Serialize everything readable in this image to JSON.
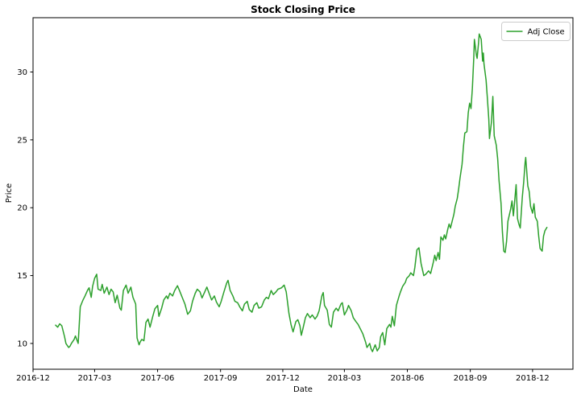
{
  "chart_data": {
    "type": "line",
    "title": "Stock Closing Price",
    "xlabel": "Date",
    "ylabel": "Price",
    "grid": false,
    "background_color": "#ffffff",
    "spine_color": "#000000",
    "legend_position": "upper right",
    "legend_border_color": "#cccccc",
    "ylim": [
      8.1,
      34.0
    ],
    "yticks": [
      10,
      15,
      20,
      25,
      30
    ],
    "xlim": [
      "2016-12-01",
      "2019-01-29"
    ],
    "xticks": [
      "2016-12",
      "2017-03",
      "2017-06",
      "2017-09",
      "2017-12",
      "2018-03",
      "2018-06",
      "2018-09",
      "2018-12"
    ],
    "series": [
      {
        "name": "Adj Close",
        "color": "#2ca02c",
        "points": [
          [
            "2017-01-03",
            11.35
          ],
          [
            "2017-01-06",
            11.2
          ],
          [
            "2017-01-09",
            11.45
          ],
          [
            "2017-01-12",
            11.3
          ],
          [
            "2017-01-16",
            10.5
          ],
          [
            "2017-01-18",
            10.0
          ],
          [
            "2017-01-22",
            9.7
          ],
          [
            "2017-01-24",
            9.8
          ],
          [
            "2017-01-26",
            10.0
          ],
          [
            "2017-01-30",
            10.3
          ],
          [
            "2017-02-01",
            10.55
          ],
          [
            "2017-02-05",
            10.0
          ],
          [
            "2017-02-08",
            12.7
          ],
          [
            "2017-02-12",
            13.2
          ],
          [
            "2017-02-15",
            13.5
          ],
          [
            "2017-02-19",
            13.95
          ],
          [
            "2017-02-21",
            14.1
          ],
          [
            "2017-02-24",
            13.4
          ],
          [
            "2017-02-26",
            14.2
          ],
          [
            "2017-03-01",
            14.8
          ],
          [
            "2017-03-04",
            15.1
          ],
          [
            "2017-03-06",
            14.0
          ],
          [
            "2017-03-10",
            13.9
          ],
          [
            "2017-03-12",
            14.35
          ],
          [
            "2017-03-15",
            13.7
          ],
          [
            "2017-03-19",
            14.15
          ],
          [
            "2017-03-22",
            13.6
          ],
          [
            "2017-03-25",
            14.0
          ],
          [
            "2017-03-28",
            13.8
          ],
          [
            "2017-03-31",
            13.0
          ],
          [
            "2017-04-03",
            13.55
          ],
          [
            "2017-04-07",
            12.6
          ],
          [
            "2017-04-09",
            12.45
          ],
          [
            "2017-04-12",
            13.9
          ],
          [
            "2017-04-16",
            14.3
          ],
          [
            "2017-04-19",
            13.7
          ],
          [
            "2017-04-23",
            14.15
          ],
          [
            "2017-04-26",
            13.4
          ],
          [
            "2017-04-30",
            12.9
          ],
          [
            "2017-05-02",
            10.4
          ],
          [
            "2017-05-05",
            9.9
          ],
          [
            "2017-05-07",
            10.15
          ],
          [
            "2017-05-09",
            10.3
          ],
          [
            "2017-05-12",
            10.2
          ],
          [
            "2017-05-15",
            11.55
          ],
          [
            "2017-05-18",
            11.8
          ],
          [
            "2017-05-21",
            11.2
          ],
          [
            "2017-05-25",
            12.0
          ],
          [
            "2017-05-28",
            12.55
          ],
          [
            "2017-06-01",
            12.8
          ],
          [
            "2017-06-03",
            12.0
          ],
          [
            "2017-06-07",
            12.6
          ],
          [
            "2017-06-10",
            13.2
          ],
          [
            "2017-06-14",
            13.5
          ],
          [
            "2017-06-16",
            13.3
          ],
          [
            "2017-06-19",
            13.7
          ],
          [
            "2017-06-23",
            13.5
          ],
          [
            "2017-06-26",
            13.9
          ],
          [
            "2017-06-30",
            14.25
          ],
          [
            "2017-07-03",
            13.9
          ],
          [
            "2017-07-07",
            13.4
          ],
          [
            "2017-07-11",
            12.9
          ],
          [
            "2017-07-15",
            12.15
          ],
          [
            "2017-07-19",
            12.4
          ],
          [
            "2017-07-22",
            13.1
          ],
          [
            "2017-07-26",
            13.7
          ],
          [
            "2017-07-29",
            14.0
          ],
          [
            "2017-08-02",
            13.8
          ],
          [
            "2017-08-05",
            13.35
          ],
          [
            "2017-08-09",
            13.8
          ],
          [
            "2017-08-12",
            14.15
          ],
          [
            "2017-08-16",
            13.6
          ],
          [
            "2017-08-19",
            13.2
          ],
          [
            "2017-08-23",
            13.5
          ],
          [
            "2017-08-26",
            13.05
          ],
          [
            "2017-08-30",
            12.7
          ],
          [
            "2017-09-02",
            13.1
          ],
          [
            "2017-09-06",
            13.8
          ],
          [
            "2017-09-10",
            14.45
          ],
          [
            "2017-09-12",
            14.65
          ],
          [
            "2017-09-15",
            13.9
          ],
          [
            "2017-09-19",
            13.5
          ],
          [
            "2017-09-22",
            13.1
          ],
          [
            "2017-09-26",
            13.0
          ],
          [
            "2017-09-29",
            12.7
          ],
          [
            "2017-10-03",
            12.4
          ],
          [
            "2017-10-06",
            12.9
          ],
          [
            "2017-10-10",
            13.1
          ],
          [
            "2017-10-13",
            12.5
          ],
          [
            "2017-10-17",
            12.3
          ],
          [
            "2017-10-20",
            12.8
          ],
          [
            "2017-10-24",
            13.0
          ],
          [
            "2017-10-27",
            12.6
          ],
          [
            "2017-10-31",
            12.7
          ],
          [
            "2017-11-04",
            13.2
          ],
          [
            "2017-11-07",
            13.4
          ],
          [
            "2017-11-10",
            13.3
          ],
          [
            "2017-11-14",
            13.9
          ],
          [
            "2017-11-17",
            13.6
          ],
          [
            "2017-11-21",
            13.8
          ],
          [
            "2017-11-24",
            14.0
          ],
          [
            "2017-11-29",
            14.1
          ],
          [
            "2017-12-03",
            14.3
          ],
          [
            "2017-12-06",
            13.8
          ],
          [
            "2017-12-10",
            12.2
          ],
          [
            "2017-12-13",
            11.4
          ],
          [
            "2017-12-16",
            10.85
          ],
          [
            "2017-12-20",
            11.6
          ],
          [
            "2017-12-23",
            11.75
          ],
          [
            "2017-12-26",
            11.3
          ],
          [
            "2017-12-28",
            10.6
          ],
          [
            "2017-12-30",
            11.0
          ],
          [
            "2018-01-03",
            11.9
          ],
          [
            "2018-01-06",
            12.2
          ],
          [
            "2018-01-10",
            11.9
          ],
          [
            "2018-01-13",
            12.1
          ],
          [
            "2018-01-17",
            11.8
          ],
          [
            "2018-01-20",
            12.0
          ],
          [
            "2018-01-23",
            12.4
          ],
          [
            "2018-01-27",
            13.5
          ],
          [
            "2018-01-29",
            13.75
          ],
          [
            "2018-01-31",
            12.8
          ],
          [
            "2018-02-04",
            12.45
          ],
          [
            "2018-02-07",
            11.4
          ],
          [
            "2018-02-10",
            11.2
          ],
          [
            "2018-02-13",
            12.3
          ],
          [
            "2018-02-17",
            12.6
          ],
          [
            "2018-02-20",
            12.4
          ],
          [
            "2018-02-24",
            12.9
          ],
          [
            "2018-02-26",
            13.0
          ],
          [
            "2018-03-01",
            12.1
          ],
          [
            "2018-03-05",
            12.5
          ],
          [
            "2018-03-07",
            12.8
          ],
          [
            "2018-03-11",
            12.4
          ],
          [
            "2018-03-14",
            11.9
          ],
          [
            "2018-03-18",
            11.6
          ],
          [
            "2018-03-21",
            11.4
          ],
          [
            "2018-03-25",
            11.0
          ],
          [
            "2018-03-28",
            10.7
          ],
          [
            "2018-04-01",
            10.1
          ],
          [
            "2018-04-03",
            9.7
          ],
          [
            "2018-04-07",
            10.0
          ],
          [
            "2018-04-09",
            9.6
          ],
          [
            "2018-04-11",
            9.4
          ],
          [
            "2018-04-15",
            9.9
          ],
          [
            "2018-04-18",
            9.45
          ],
          [
            "2018-04-21",
            9.7
          ],
          [
            "2018-04-23",
            10.5
          ],
          [
            "2018-04-26",
            10.8
          ],
          [
            "2018-04-29",
            9.9
          ],
          [
            "2018-05-02",
            11.1
          ],
          [
            "2018-05-06",
            11.4
          ],
          [
            "2018-05-08",
            11.2
          ],
          [
            "2018-05-10",
            12.0
          ],
          [
            "2018-05-13",
            11.3
          ],
          [
            "2018-05-16",
            12.8
          ],
          [
            "2018-05-20",
            13.5
          ],
          [
            "2018-05-22",
            13.8
          ],
          [
            "2018-05-25",
            14.2
          ],
          [
            "2018-05-29",
            14.5
          ],
          [
            "2018-05-31",
            14.8
          ],
          [
            "2018-06-04",
            15.0
          ],
          [
            "2018-06-06",
            15.2
          ],
          [
            "2018-06-10",
            15.0
          ],
          [
            "2018-06-12",
            15.6
          ],
          [
            "2018-06-15",
            16.9
          ],
          [
            "2018-06-18",
            17.05
          ],
          [
            "2018-06-21",
            15.9
          ],
          [
            "2018-06-25",
            15.0
          ],
          [
            "2018-06-28",
            15.1
          ],
          [
            "2018-07-02",
            15.35
          ],
          [
            "2018-07-05",
            15.15
          ],
          [
            "2018-07-09",
            16.0
          ],
          [
            "2018-07-11",
            16.5
          ],
          [
            "2018-07-13",
            16.1
          ],
          [
            "2018-07-16",
            16.7
          ],
          [
            "2018-07-18",
            16.2
          ],
          [
            "2018-07-20",
            17.85
          ],
          [
            "2018-07-23",
            17.6
          ],
          [
            "2018-07-25",
            18.0
          ],
          [
            "2018-07-27",
            17.7
          ],
          [
            "2018-07-30",
            18.4
          ],
          [
            "2018-08-01",
            18.8
          ],
          [
            "2018-08-03",
            18.5
          ],
          [
            "2018-08-06",
            19.1
          ],
          [
            "2018-08-08",
            19.5
          ],
          [
            "2018-08-10",
            20.1
          ],
          [
            "2018-08-13",
            20.7
          ],
          [
            "2018-08-15",
            21.4
          ],
          [
            "2018-08-17",
            22.2
          ],
          [
            "2018-08-20",
            23.2
          ],
          [
            "2018-08-22",
            24.5
          ],
          [
            "2018-08-24",
            25.5
          ],
          [
            "2018-08-27",
            25.6
          ],
          [
            "2018-08-29",
            27.0
          ],
          [
            "2018-08-31",
            27.7
          ],
          [
            "2018-09-02",
            27.3
          ],
          [
            "2018-09-04",
            28.8
          ],
          [
            "2018-09-06",
            31.0
          ],
          [
            "2018-09-07",
            32.4
          ],
          [
            "2018-09-10",
            31.2
          ],
          [
            "2018-09-11",
            31.0
          ],
          [
            "2018-09-13",
            32.1
          ],
          [
            "2018-09-14",
            32.8
          ],
          [
            "2018-09-17",
            32.4
          ],
          [
            "2018-09-19",
            30.8
          ],
          [
            "2018-09-20",
            31.4
          ],
          [
            "2018-09-21",
            30.6
          ],
          [
            "2018-09-24",
            29.4
          ],
          [
            "2018-09-26",
            28.0
          ],
          [
            "2018-09-28",
            26.5
          ],
          [
            "2018-09-29",
            25.1
          ],
          [
            "2018-10-02",
            26.3
          ],
          [
            "2018-10-04",
            28.2
          ],
          [
            "2018-10-06",
            25.3
          ],
          [
            "2018-10-09",
            24.6
          ],
          [
            "2018-10-11",
            23.6
          ],
          [
            "2018-10-13",
            22.0
          ],
          [
            "2018-10-16",
            20.3
          ],
          [
            "2018-10-18",
            18.2
          ],
          [
            "2018-10-20",
            16.8
          ],
          [
            "2018-10-22",
            16.7
          ],
          [
            "2018-10-24",
            17.5
          ],
          [
            "2018-10-26",
            19.0
          ],
          [
            "2018-10-30",
            19.9
          ],
          [
            "2018-11-01",
            20.5
          ],
          [
            "2018-11-03",
            19.4
          ],
          [
            "2018-11-07",
            21.7
          ],
          [
            "2018-11-09",
            19.2
          ],
          [
            "2018-11-11",
            18.8
          ],
          [
            "2018-11-13",
            18.5
          ],
          [
            "2018-11-16",
            20.8
          ],
          [
            "2018-11-18",
            21.9
          ],
          [
            "2018-11-20",
            23.3
          ],
          [
            "2018-11-21",
            23.7
          ],
          [
            "2018-11-24",
            21.6
          ],
          [
            "2018-11-26",
            21.2
          ],
          [
            "2018-11-28",
            20.1
          ],
          [
            "2018-12-01",
            19.6
          ],
          [
            "2018-12-03",
            20.3
          ],
          [
            "2018-12-05",
            19.3
          ],
          [
            "2018-12-08",
            19.0
          ],
          [
            "2018-12-10",
            17.9
          ],
          [
            "2018-12-12",
            17.0
          ],
          [
            "2018-12-15",
            16.8
          ],
          [
            "2018-12-17",
            17.9
          ],
          [
            "2018-12-19",
            18.3
          ],
          [
            "2018-12-22",
            18.55
          ]
        ]
      }
    ]
  }
}
